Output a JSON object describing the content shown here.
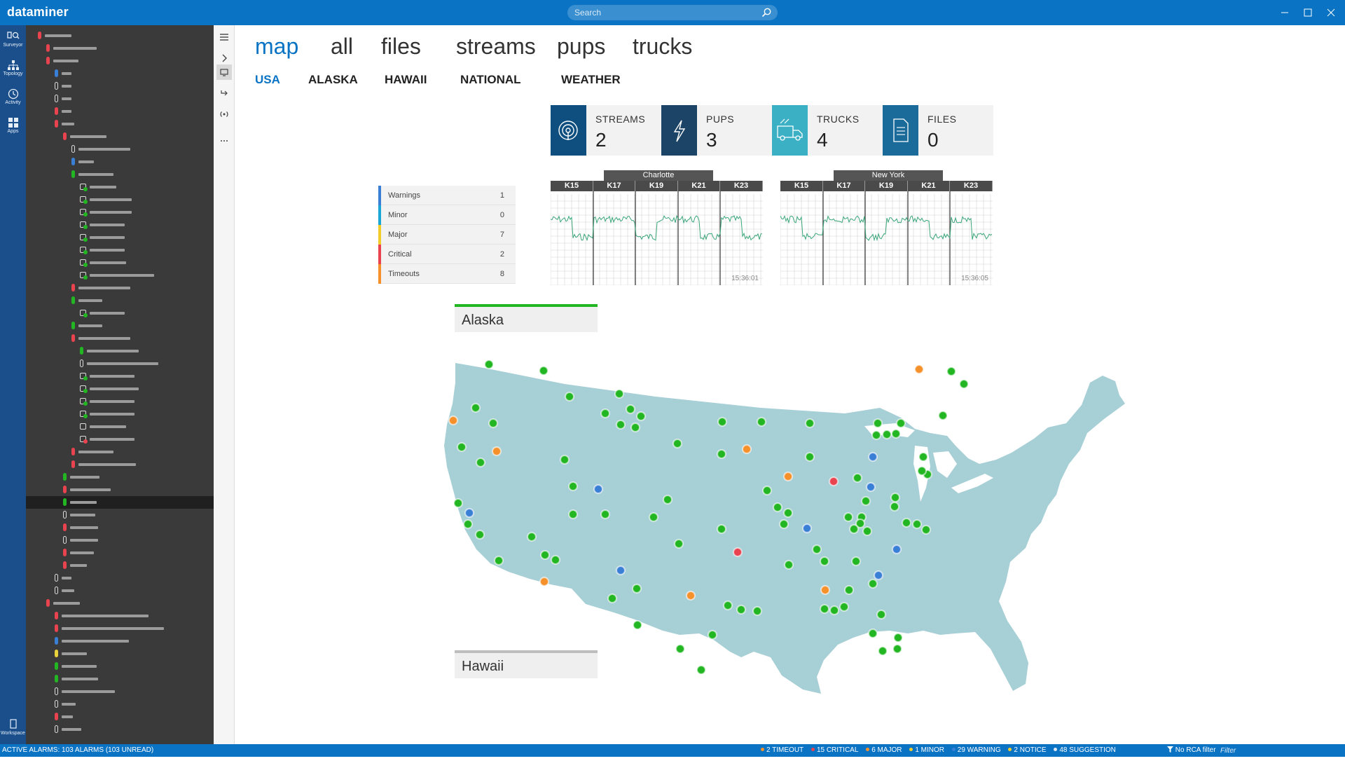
{
  "app": {
    "title": "dataminer"
  },
  "search": {
    "placeholder": "Search"
  },
  "rail": {
    "items": [
      {
        "label": "Surveyor",
        "icon": "surveyor-icon"
      },
      {
        "label": "Topology",
        "icon": "topology-icon"
      },
      {
        "label": "Activity",
        "icon": "activity-icon"
      },
      {
        "label": "Apps",
        "icon": "apps-icon"
      }
    ],
    "workspace_label": "Workspace"
  },
  "tree": {
    "status_colors": {
      "critical": "#e8434e",
      "normal": "#22b722",
      "info": "#3a7fd6",
      "warning": "#e8d13a",
      "none": "#dcdcdc"
    },
    "rows": [
      {
        "indent": 0,
        "status": "critical",
        "bar": 38
      },
      {
        "indent": 1,
        "status": "critical",
        "bar": 62
      },
      {
        "indent": 1,
        "status": "critical",
        "bar": 36
      },
      {
        "indent": 2,
        "status": "info",
        "bar": 14
      },
      {
        "indent": 2,
        "status": "none",
        "bar": 14
      },
      {
        "indent": 2,
        "status": "none",
        "bar": 14
      },
      {
        "indent": 2,
        "status": "critical",
        "bar": 14
      },
      {
        "indent": 2,
        "status": "critical",
        "bar": 18
      },
      {
        "indent": 3,
        "status": "critical",
        "bar": 52
      },
      {
        "indent": 4,
        "status": "none",
        "bar": 74
      },
      {
        "indent": 4,
        "status": "info",
        "bar": 22
      },
      {
        "indent": 4,
        "status": "normal",
        "bar": 50
      },
      {
        "indent": 5,
        "status": "normal",
        "check": true,
        "bar": 38
      },
      {
        "indent": 5,
        "status": "normal",
        "check": true,
        "bar": 60
      },
      {
        "indent": 5,
        "status": "normal",
        "check": true,
        "bar": 60
      },
      {
        "indent": 5,
        "status": "normal",
        "check": true,
        "bar": 50
      },
      {
        "indent": 5,
        "status": "normal",
        "check": true,
        "bar": 50
      },
      {
        "indent": 5,
        "status": "normal",
        "check": true,
        "bar": 50
      },
      {
        "indent": 5,
        "status": "normal",
        "check": true,
        "bar": 52
      },
      {
        "indent": 5,
        "status": "normal",
        "check": true,
        "bar": 92
      },
      {
        "indent": 4,
        "status": "critical",
        "bar": 74
      },
      {
        "indent": 4,
        "status": "normal",
        "bar": 34
      },
      {
        "indent": 5,
        "status": "normal",
        "check": true,
        "bar": 50
      },
      {
        "indent": 4,
        "status": "normal",
        "bar": 34
      },
      {
        "indent": 4,
        "status": "critical",
        "bar": 74
      },
      {
        "indent": 5,
        "status": "normal",
        "bar": 74
      },
      {
        "indent": 5,
        "status": "none",
        "bar": 102
      },
      {
        "indent": 5,
        "status": "normal",
        "check": true,
        "bar": 64
      },
      {
        "indent": 5,
        "status": "normal",
        "check": true,
        "bar": 70
      },
      {
        "indent": 5,
        "status": "normal",
        "check": true,
        "bar": 64
      },
      {
        "indent": 5,
        "status": "normal",
        "check": true,
        "bar": 64
      },
      {
        "indent": 5,
        "status": "none",
        "check": false,
        "bar": 52
      },
      {
        "indent": 5,
        "status": "critical",
        "check": true,
        "bar": 64
      },
      {
        "indent": 4,
        "status": "critical",
        "bar": 50
      },
      {
        "indent": 4,
        "status": "critical",
        "bar": 82
      },
      {
        "indent": 3,
        "status": "normal",
        "bar": 42
      },
      {
        "indent": 3,
        "status": "critical",
        "bar": 58
      },
      {
        "indent": 3,
        "status": "normal",
        "bar": 38,
        "selected": true
      },
      {
        "indent": 3,
        "status": "none",
        "bar": 36
      },
      {
        "indent": 3,
        "status": "critical",
        "bar": 40
      },
      {
        "indent": 3,
        "status": "none",
        "bar": 40
      },
      {
        "indent": 3,
        "status": "critical",
        "bar": 34
      },
      {
        "indent": 3,
        "status": "critical",
        "bar": 24
      },
      {
        "indent": 2,
        "status": "none",
        "bar": 14
      },
      {
        "indent": 2,
        "status": "none",
        "bar": 18
      },
      {
        "indent": 1,
        "status": "critical",
        "bar": 38
      },
      {
        "indent": 2,
        "status": "critical",
        "bar": 124
      },
      {
        "indent": 2,
        "status": "critical",
        "bar": 146
      },
      {
        "indent": 2,
        "status": "info",
        "bar": 96
      },
      {
        "indent": 2,
        "status": "warning",
        "bar": 36
      },
      {
        "indent": 2,
        "status": "normal",
        "bar": 50
      },
      {
        "indent": 2,
        "status": "normal",
        "bar": 52
      },
      {
        "indent": 2,
        "status": "none",
        "bar": 76
      },
      {
        "indent": 2,
        "status": "none",
        "bar": 20
      },
      {
        "indent": 2,
        "status": "critical",
        "bar": 16
      },
      {
        "indent": 2,
        "status": "none",
        "bar": 28
      }
    ]
  },
  "tabs": [
    {
      "label": "map",
      "active": true
    },
    {
      "label": "all"
    },
    {
      "label": "files"
    },
    {
      "label": "streams"
    },
    {
      "label": "pups"
    },
    {
      "label": "trucks"
    }
  ],
  "subtabs": [
    {
      "label": "USA",
      "active": true
    },
    {
      "label": "ALASKA"
    },
    {
      "label": "HAWAII"
    },
    {
      "label": "NATIONAL"
    },
    {
      "label": "WEATHER"
    }
  ],
  "tiles": [
    {
      "label": "STREAMS",
      "value": "2",
      "color": "#0e4f80",
      "icon": "antenna-icon"
    },
    {
      "label": "PUPS",
      "value": "3",
      "color": "#1c4466",
      "icon": "lightning-icon"
    },
    {
      "label": "TRUCKS",
      "value": "4",
      "color": "#3bb0c4",
      "icon": "truck-icon"
    },
    {
      "label": "FILES",
      "value": "0",
      "color": "#1a6b9a",
      "icon": "file-icon"
    }
  ],
  "legend": [
    {
      "name": "Warnings",
      "count": "1",
      "color": "#3a7fd6"
    },
    {
      "name": "Minor",
      "count": "0",
      "color": "#1aa6d6"
    },
    {
      "name": "Major",
      "count": "7",
      "color": "#f2cd2a"
    },
    {
      "name": "Critical",
      "count": "2",
      "color": "#e8434e"
    },
    {
      "name": "Timeouts",
      "count": "8",
      "color": "#f5902a"
    }
  ],
  "spectrums": [
    {
      "title": "Charlotte",
      "time": "15:36:01",
      "channels": [
        "K15",
        "K17",
        "K19",
        "K21",
        "K23"
      ]
    },
    {
      "title": "New York",
      "time": "15:36:05",
      "channels": [
        "K15",
        "K17",
        "K19",
        "K21",
        "K23"
      ]
    }
  ],
  "regions": {
    "alaska": "Alaska",
    "hawaii": "Hawaii"
  },
  "map": {
    "fill": "#a7cfd6",
    "marker_colors": {
      "normal": "#22b722",
      "major": "#f2cd2a",
      "timeout": "#f5902a",
      "critical": "#e8434e",
      "warning": "#3a7fd6"
    }
  },
  "statusbar": {
    "active_alarms": "ACTIVE ALARMS: 103 ALARMS (103 UNREAD)",
    "counts": [
      {
        "text": "2 TIMEOUT",
        "color": "#f5902a"
      },
      {
        "text": "15 CRITICAL",
        "color": "#e8434e"
      },
      {
        "text": "6 MAJOR",
        "color": "#f5902a"
      },
      {
        "text": "1 MINOR",
        "color": "#f2cd2a"
      },
      {
        "text": "29 WARNING",
        "color": "#3a7fd6"
      },
      {
        "text": "2 NOTICE",
        "color": "#f2cd2a"
      },
      {
        "text": "48 SUGGESTION",
        "color": "#dfe8f2"
      }
    ],
    "rca": "No RCA filter",
    "filter_placeholder": "Filter"
  }
}
